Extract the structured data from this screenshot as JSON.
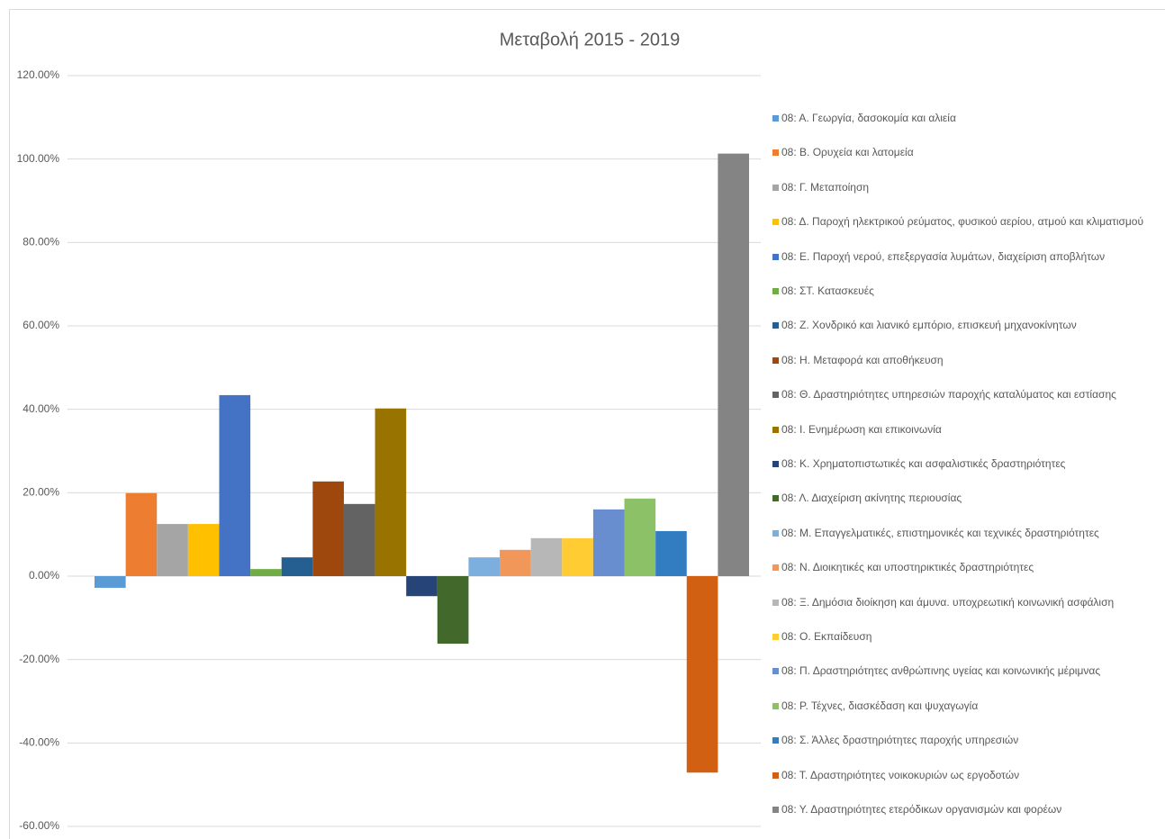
{
  "chart_data": {
    "type": "bar",
    "title": "Μεταβολή 2015 - 2019",
    "legend": "right",
    "grid": true,
    "ylim": [
      -60,
      120
    ],
    "yticks": [
      {
        "value": -60,
        "label": "-60.00%"
      },
      {
        "value": -40,
        "label": "-40.00%"
      },
      {
        "value": -20,
        "label": "-20.00%"
      },
      {
        "value": 0,
        "label": "0.00%"
      },
      {
        "value": 20,
        "label": "20.00%"
      },
      {
        "value": 40,
        "label": "40.00%"
      },
      {
        "value": 60,
        "label": "60.00%"
      },
      {
        "value": 80,
        "label": "80.00%"
      },
      {
        "value": 100,
        "label": "100.00%"
      },
      {
        "value": 120,
        "label": "120.00%"
      }
    ],
    "categories": [
      null
    ],
    "series": [
      {
        "name": "08: Α. Γεωργία,  δασοκομία και αλιεία",
        "color": "#5b9bd5",
        "values": [
          -2.8
        ]
      },
      {
        "name": "08: Β. Ορυχεία και λατομεία",
        "color": "#ed7d31",
        "values": [
          19.9
        ]
      },
      {
        "name": "08: Γ. Μεταποίηση",
        "color": "#a5a5a5",
        "values": [
          12.5
        ]
      },
      {
        "name": "08: Δ. Παροχή ηλεκτρικού ρεύματος, φυσικού αερίου, ατμού και κλιματισμού",
        "color": "#ffc000",
        "values": [
          12.5
        ]
      },
      {
        "name": "08: Ε. Παροχή νερού, επεξεργασία λυμάτων, διαχείριση  αποβλήτων",
        "color": "#4472c4",
        "values": [
          43.4
        ]
      },
      {
        "name": "08: ΣΤ. Κατασκευές",
        "color": "#70ad47",
        "values": [
          1.7
        ]
      },
      {
        "name": "08: Ζ. Χονδρικό  και  λιανικό  εμπόριο, επισκευή  μηχανοκίνητων",
        "color": "#255e91",
        "values": [
          4.5
        ]
      },
      {
        "name": "08: Η. Μεταφορά και αποθήκευση",
        "color": "#9e480e",
        "values": [
          22.7
        ]
      },
      {
        "name": "08: Θ. Δραστηριότητες υπηρεσιών παροχής καταλύματος και εστίασης",
        "color": "#636363",
        "values": [
          17.3
        ]
      },
      {
        "name": "08: Ι. Ενημέρωση  και επικοινωνία",
        "color": "#997300",
        "values": [
          40.2
        ]
      },
      {
        "name": "08: Κ. Χρηματοπιστωτικές και ασφαλιστικές δραστηριότητες",
        "color": "#264478",
        "values": [
          -4.8
        ]
      },
      {
        "name": "08: Λ. Διαχείριση  ακίνητης  περιουσίας",
        "color": "#43682b",
        "values": [
          -16.2
        ]
      },
      {
        "name": "08: Μ. Επαγγελματικές, επιστημονικές  και  τεχνικές  δραστηριότητες",
        "color": "#7cafdd",
        "values": [
          4.5
        ]
      },
      {
        "name": "08: Ν. Διοικητικές και υποστηρικτικές δραστηριότητες",
        "color": "#f1975a",
        "values": [
          6.3
        ]
      },
      {
        "name": "08: Ξ. Δημόσια διοίκηση  και άμυνα. υποχρεωτική κοινωνική  ασφάλιση",
        "color": "#b7b7b7",
        "values": [
          9.1
        ]
      },
      {
        "name": "08: Ο. Εκπαίδευση",
        "color": "#ffcd33",
        "values": [
          9.1
        ]
      },
      {
        "name": "08: Π. Δραστηριότητες ανθρώπινης υγείας και κοινωνικής  μέριμνας",
        "color": "#698ed0",
        "values": [
          16
        ]
      },
      {
        "name": "08: Ρ. Τέχνες,  διασκέδαση   και  ψυχαγωγία",
        "color": "#8cc168",
        "values": [
          18.6
        ]
      },
      {
        "name": "08: Σ. Άλλες δραστηριότητες παροχής υπηρεσιών",
        "color": "#327dc2",
        "values": [
          10.8
        ]
      },
      {
        "name": "08: Τ. Δραστηριότητες  νοικοκυριών  ως  εργοδοτών",
        "color": "#d26012",
        "values": [
          -47.1
        ]
      },
      {
        "name": "08: Υ. Δραστηριότητες  ετερόδικων  οργανισμών και φορέων",
        "color": "#848484",
        "values": [
          101.3
        ]
      }
    ]
  }
}
